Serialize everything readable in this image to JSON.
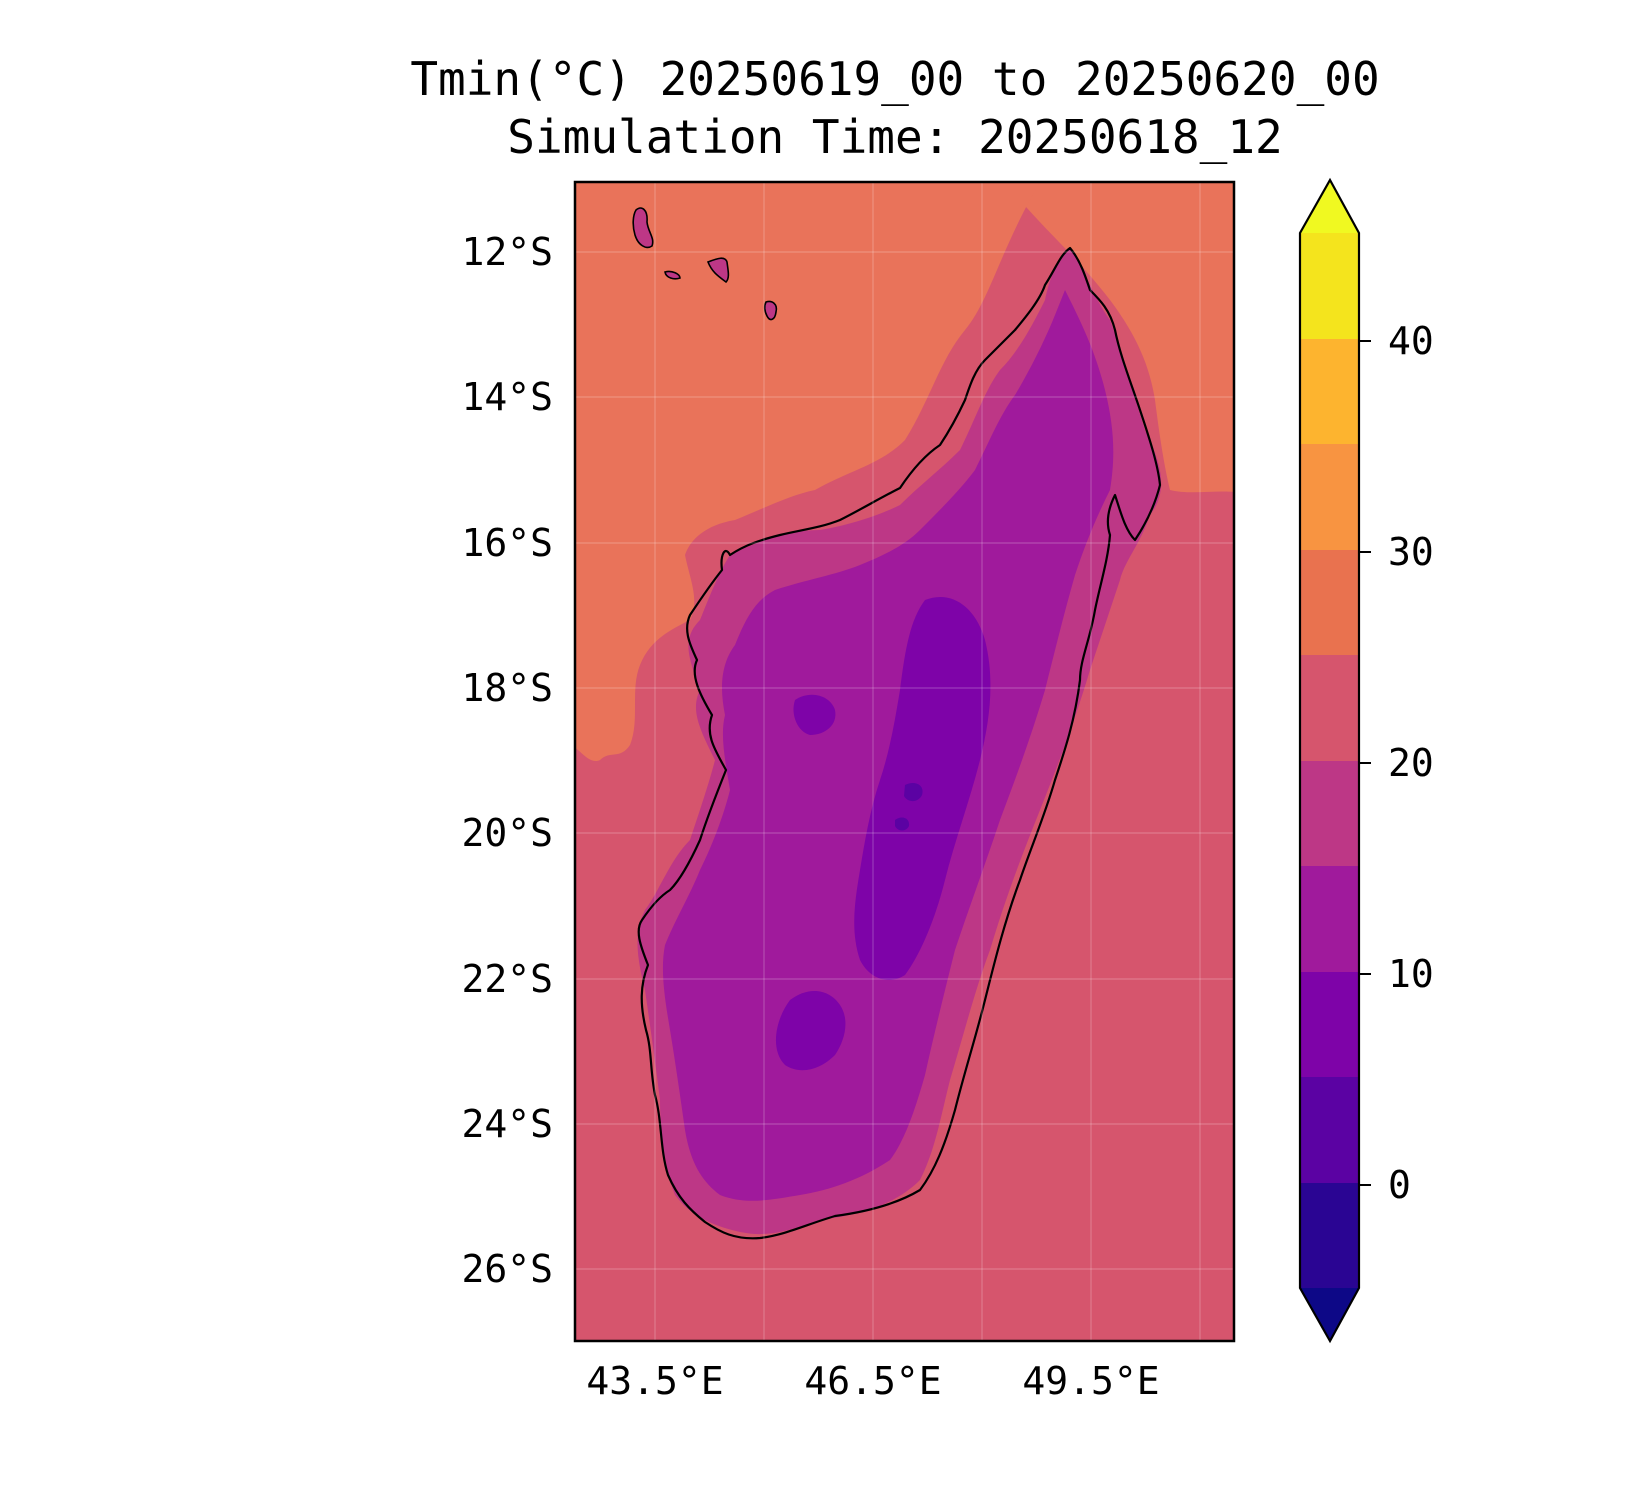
{
  "title": {
    "line1": "Tmin(°C) 20250619_00 to 20250620_00",
    "line2": "Simulation Time: 20250618_12"
  },
  "map": {
    "region": "Madagascar",
    "lat_ticks": [
      "12°S",
      "14°S",
      "16°S",
      "18°S",
      "20°S",
      "22°S",
      "24°S",
      "26°S"
    ],
    "lon_ticks": [
      "43.5°E",
      "46.5°E",
      "49.5°E"
    ],
    "lat_range": [
      -27,
      -11
    ],
    "lon_range": [
      41.3,
      59.5
    ]
  },
  "colorbar": {
    "tick_labels": [
      "0",
      "10",
      "20",
      "30",
      "40"
    ],
    "levels": [
      -5,
      0,
      5,
      10,
      15,
      20,
      25,
      30,
      35,
      40,
      45
    ],
    "extend": "both",
    "colors": [
      "#0d0887",
      "#2a0593",
      "#5b02a3",
      "#7e03a8",
      "#a01a9c",
      "#bd3786",
      "#d6556d",
      "#e9724f",
      "#f89441",
      "#fdb42f",
      "#f4e41d",
      "#f0f921"
    ]
  },
  "field_colors": {
    "ocean_north": "#e9735a",
    "ocean_south": "#d6556d",
    "coast_band": "#bd3786",
    "inland": "#a01a9c",
    "highland": "#7e03a8",
    "coldest": "#5b02a3"
  }
}
